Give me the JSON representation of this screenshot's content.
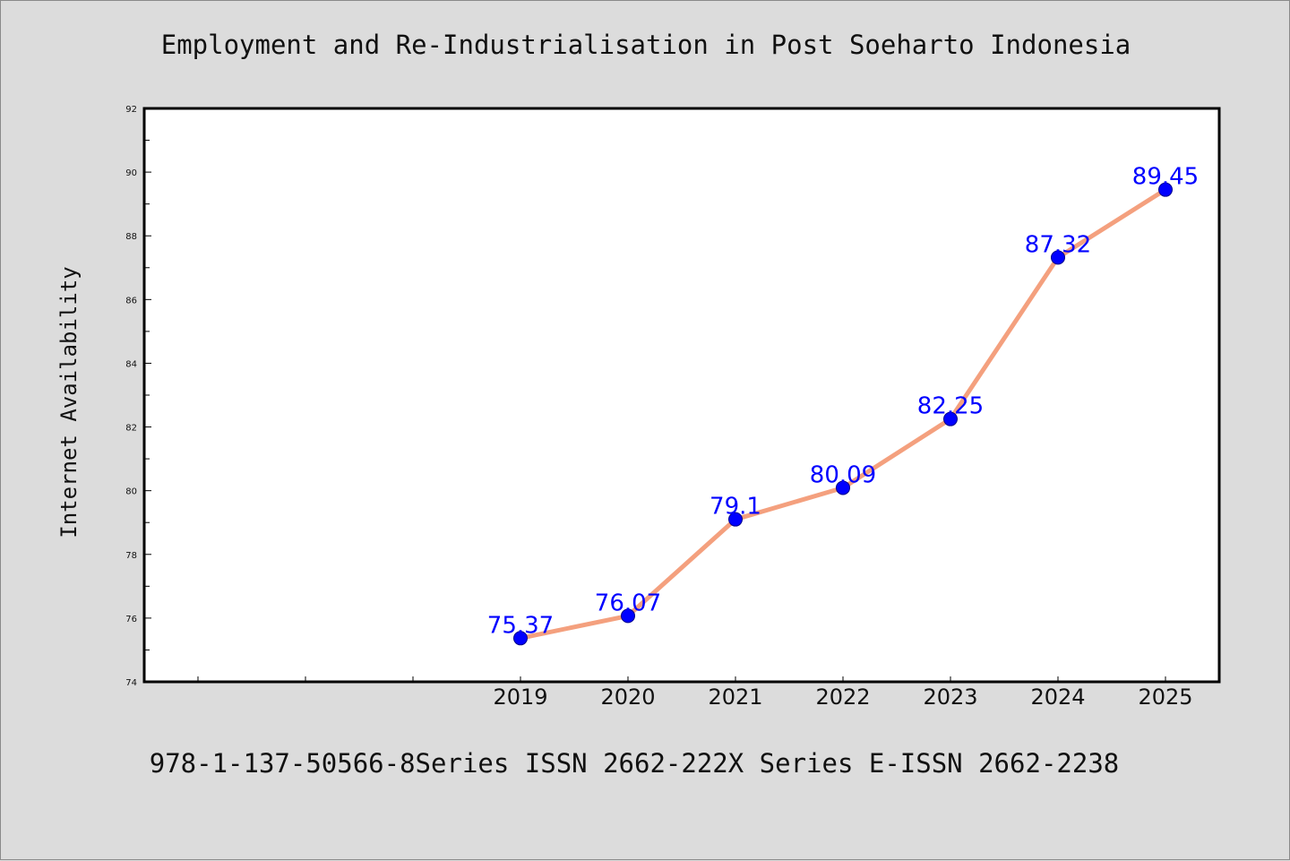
{
  "title": "Employment and Re-Industrialisation in Post Soeharto Indonesia",
  "footer": "978-1-137-50566-8Series ISSN 2662-222X Series E-ISSN 2662-2238",
  "colors": {
    "background": "#dcdcdc",
    "plot_background": "#ffffff",
    "line": "#f4a07e",
    "marker": "#0000ff",
    "data_label": "#0000ff"
  },
  "chart_data": {
    "type": "line",
    "title": "Employment and Re-Industrialisation in Post Soeharto Indonesia",
    "xlabel": "",
    "ylabel": "Internet Availability",
    "x": [
      "2019",
      "2020",
      "2021",
      "2022",
      "2023",
      "2024",
      "2025"
    ],
    "values": [
      75.37,
      76.07,
      79.1,
      80.09,
      82.25,
      87.32,
      89.45
    ],
    "labels": [
      "75.37",
      "76.07",
      "79.1",
      "80.09",
      "82.25",
      "87.32",
      "89.45"
    ],
    "ylim": [
      74,
      92
    ],
    "yticks": [
      "74",
      "76",
      "78",
      "80",
      "82",
      "84",
      "86",
      "88",
      "90",
      "92"
    ],
    "x_slots_before_data": 3,
    "grid": false,
    "legend": "none"
  }
}
